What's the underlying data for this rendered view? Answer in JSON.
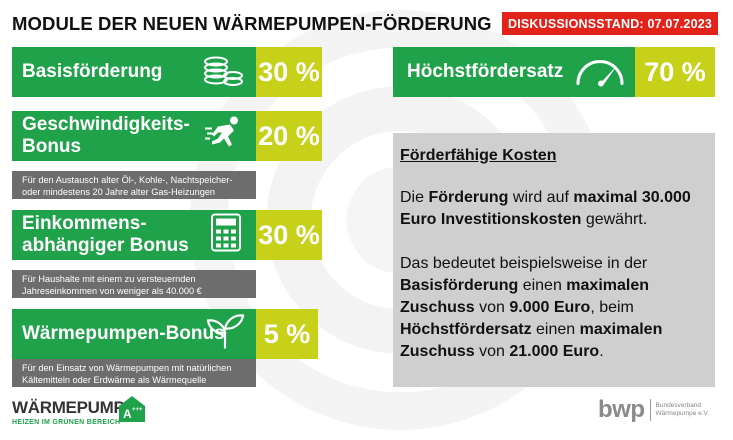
{
  "title": "MODULE DER NEUEN WÄRMEPUMPEN-FÖRDERUNG",
  "badge": "DISKUSSIONSSTAND: 07.07.2023",
  "cards": {
    "basis": {
      "label": "Basisförderung",
      "value": "30 %"
    },
    "speed": {
      "label_line1": "Geschwindigkeits-",
      "label_line2": "Bonus",
      "value": "20 %",
      "note_line1": "Für den Austausch alter Öl-, Kohle-, Nachtspeicher-",
      "note_line2": "oder mindestens 20 Jahre alter Gas-Heizungen"
    },
    "income": {
      "label_line1": "Einkommens-",
      "label_line2": "abhängiger Bonus",
      "value": "30 %",
      "note_line1": "Für Haushalte mit einem zu versteuernden",
      "note_line2": "Jahreseinkommen von weniger als 40.000 €"
    },
    "hp": {
      "label": "Wärmepumpen-Bonus",
      "value": "5 %",
      "note_line1": "Für den Einsatz von Wärmepumpen mit natürlichen",
      "note_line2": "Kältemitteln oder Erdwärme als Wärmequelle"
    },
    "max": {
      "label": "Höchstfördersatz",
      "value": "70 %"
    }
  },
  "info": {
    "heading": "Förderfähige Kosten",
    "p1_a": "Die ",
    "p1_b": "Förderung",
    "p1_c": " wird auf ",
    "p1_d": "maximal 30.000 Euro Investitionskosten",
    "p1_e": " gewährt.",
    "p2_a": "Das bedeutet beispielsweise in der ",
    "p2_b": "Basisförderung",
    "p2_c": " einen ",
    "p2_d": "maximalen Zuschuss",
    "p2_e": " von ",
    "p2_f": "9.000 Euro",
    "p2_g": ", beim ",
    "p2_h": "Höchstfördersatz",
    "p2_i": " einen ",
    "p2_j": "maximalen Zuschuss",
    "p2_k": " von ",
    "p2_l": "21.000 Euro",
    "p2_m": "."
  },
  "logo_left": {
    "big": "WÄRMEPUMPE",
    "small": "HEIZEN IM GRÜNEN BEREICH",
    "mark": "A+++"
  },
  "logo_right": {
    "brand": "bwp",
    "sub_line1": "Bundesverband",
    "sub_line2": "Wärmepumpe e.V."
  },
  "colors": {
    "green": "#1fa24a",
    "lime": "#c7d11a",
    "red": "#e2231a",
    "note_gray": "#6d6d6d",
    "info_gray": "#cfcfcf"
  }
}
